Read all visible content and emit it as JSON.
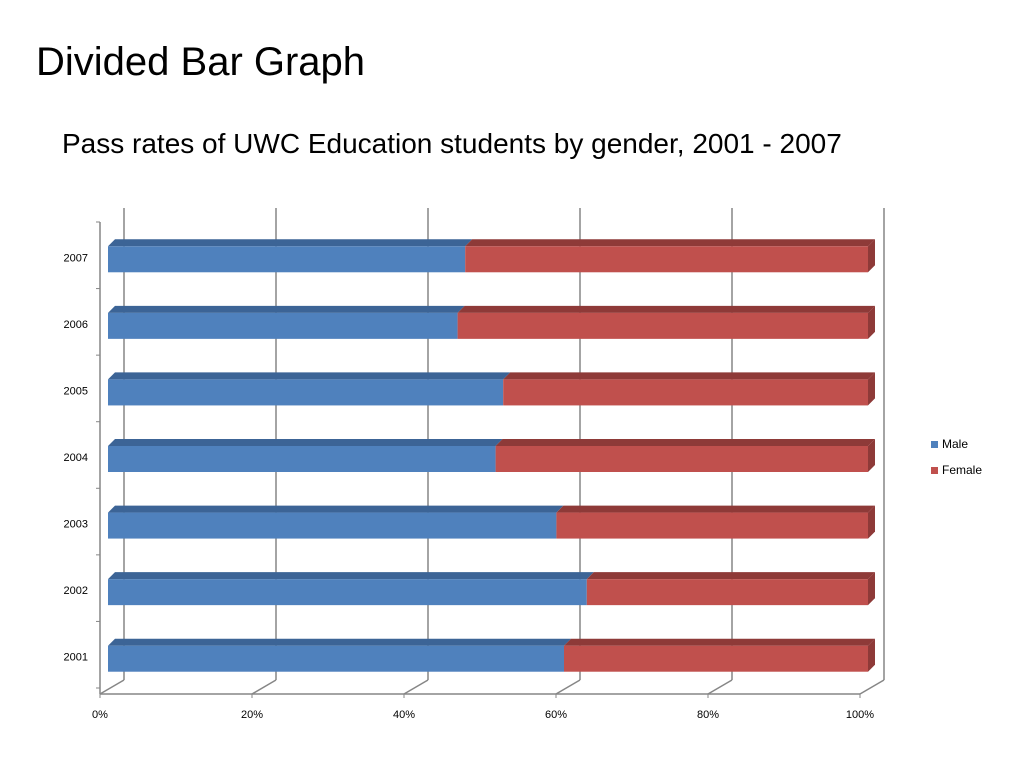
{
  "slide": {
    "title": "Divided Bar Graph"
  },
  "chart_data": {
    "type": "bar",
    "orientation": "horizontal",
    "stacked": "percent",
    "title": "Pass rates of UWC Education students by gender, 2001 - 2007",
    "xlabel": "",
    "ylabel": "",
    "categories": [
      "2001",
      "2002",
      "2003",
      "2004",
      "2005",
      "2006",
      "2007"
    ],
    "series": [
      {
        "name": "Male",
        "color": "#4F81BD",
        "top_color": "#3C6496",
        "values": [
          60,
          63,
          59,
          51,
          52,
          46,
          47
        ]
      },
      {
        "name": "Female",
        "color": "#C0504D",
        "top_color": "#8E3A38",
        "values": [
          40,
          37,
          41,
          49,
          48,
          54,
          53
        ]
      }
    ],
    "xlim": [
      0,
      100
    ],
    "x_ticks": [
      "0%",
      "20%",
      "40%",
      "60%",
      "80%",
      "100%"
    ],
    "grid": true,
    "legend": "right"
  }
}
